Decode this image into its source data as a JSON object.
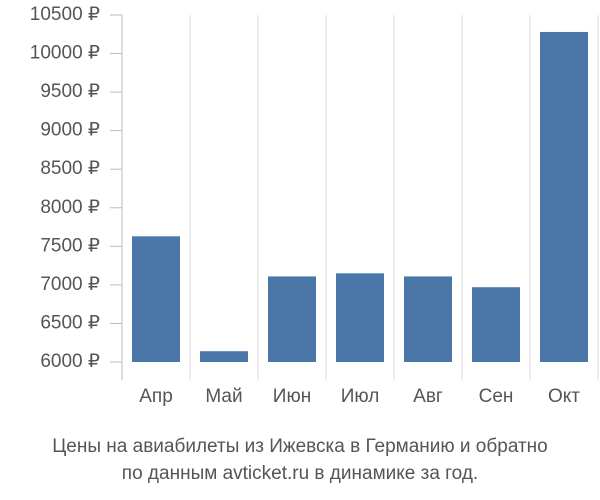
{
  "chart_data": {
    "type": "bar",
    "caption": [
      "Цены на авиабилеты из Ижевска в Германию и обратно",
      "по данным avticket.ru в динамике за год."
    ],
    "categories": [
      "Апр",
      "Май",
      "Июн",
      "Июл",
      "Авг",
      "Сен",
      "Окт"
    ],
    "values": [
      7630,
      6140,
      7110,
      7150,
      7110,
      6970,
      10280
    ],
    "color": "#4a76a8",
    "ylim": [
      6000,
      10500
    ],
    "yticks": [
      {
        "value": 6000,
        "label": "6000 ₽"
      },
      {
        "value": 6500,
        "label": "6500 ₽"
      },
      {
        "value": 7000,
        "label": "7000 ₽"
      },
      {
        "value": 7500,
        "label": "7500 ₽"
      },
      {
        "value": 8000,
        "label": "8000 ₽"
      },
      {
        "value": 8500,
        "label": "8500 ₽"
      },
      {
        "value": 9000,
        "label": "9000 ₽"
      },
      {
        "value": 9500,
        "label": "9500 ₽"
      },
      {
        "value": 10000,
        "label": "10000 ₽"
      },
      {
        "value": 10500,
        "label": "10500 ₽"
      }
    ],
    "grid": true
  }
}
